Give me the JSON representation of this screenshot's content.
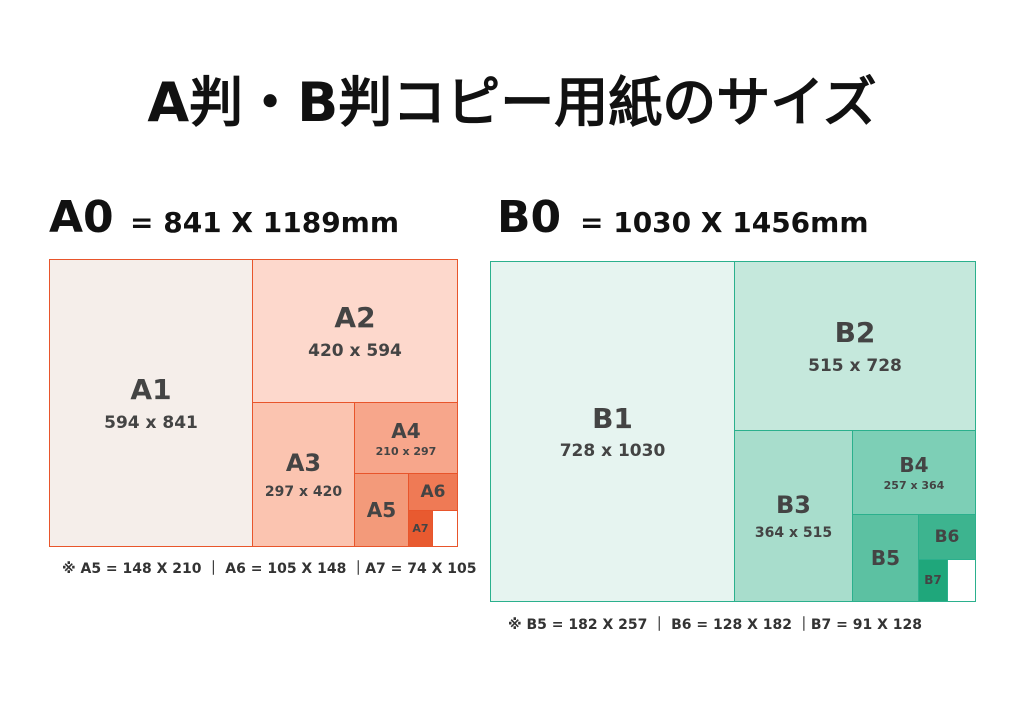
{
  "title": "A判・B判コピー用紙のサイズ",
  "sheets": [
    {
      "name": "A0",
      "size": "= 841 X 1189mm",
      "parts": [
        {
          "name": "A1",
          "size": "594 x 841"
        },
        {
          "name": "A2",
          "size": "420 x 594"
        },
        {
          "name": "A3",
          "size": "297 x 420"
        },
        {
          "name": "A4",
          "size": "210 x 297"
        },
        {
          "name": "A5"
        },
        {
          "name": "A6"
        },
        {
          "name": "A7"
        }
      ],
      "note": "※ A5 = 148 X 210 ｜ A6 = 105 X 148 ｜A7 = 74 X 105"
    },
    {
      "name": "B0",
      "size": "= 1030 X 1456mm",
      "parts": [
        {
          "name": "B1",
          "size": "728 x 1030"
        },
        {
          "name": "B2",
          "size": "515 x 728"
        },
        {
          "name": "B3",
          "size": "364 x 515"
        },
        {
          "name": "B4",
          "size": "257 x 364"
        },
        {
          "name": "B5"
        },
        {
          "name": "B6"
        },
        {
          "name": "B7"
        }
      ],
      "note": "※ B5 = 182 X 257 ｜ B6 = 128 X 182 ｜B7 = 91 X 128"
    }
  ]
}
